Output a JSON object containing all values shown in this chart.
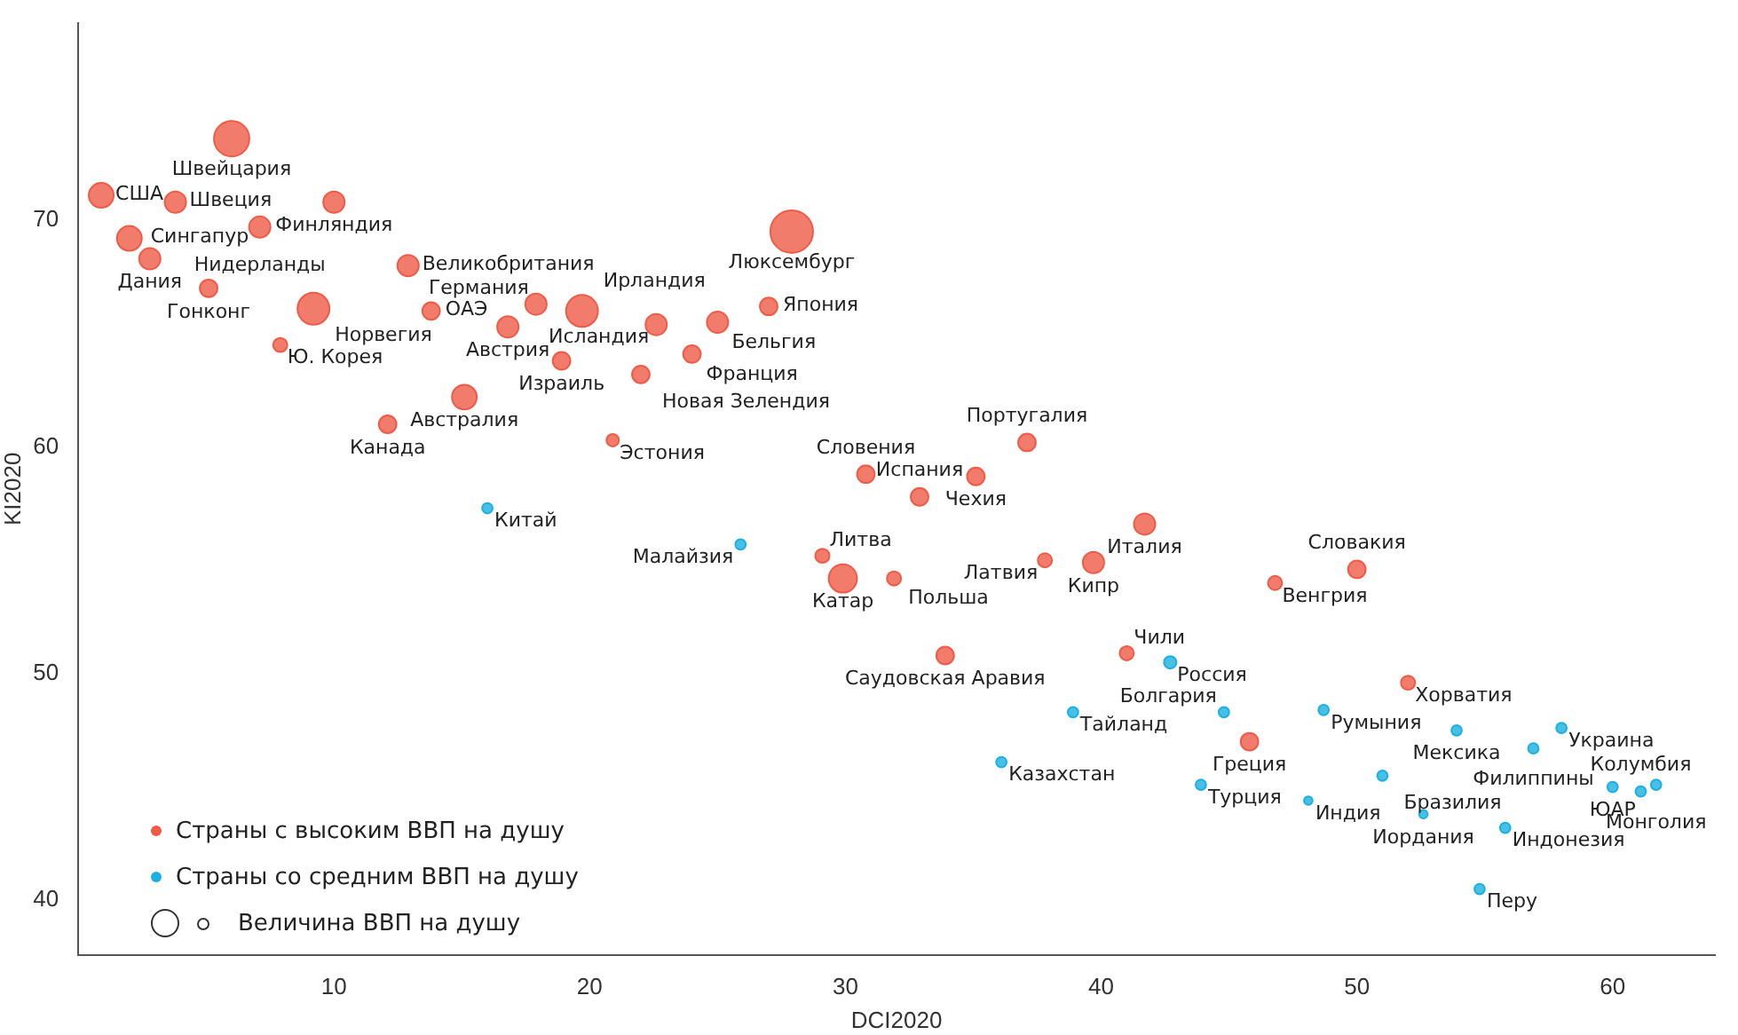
{
  "chart_data": {
    "type": "bubble",
    "xlabel": "DCI2020",
    "ylabel": "KI2020",
    "xlim": [
      0,
      64
    ],
    "ylim": [
      37.6,
      78.7
    ],
    "xticks": [
      10,
      20,
      30,
      40,
      50,
      60
    ],
    "yticks": [
      40,
      50,
      60,
      70
    ],
    "grid": false,
    "legend": "bottom left",
    "series": [
      {
        "name": "Страны с высоким ВВП  на душу",
        "color": "#ef5b47",
        "x": [
          6.0,
          0.9,
          3.8,
          10.0,
          2.0,
          7.1,
          2.8,
          27.9,
          12.9,
          5.1,
          9.2,
          13.8,
          17.9,
          16.8,
          19.7,
          22.6,
          25.0,
          27.0,
          24.0,
          18.9,
          22.0,
          7.9,
          15.1,
          12.1,
          20.9,
          30.8,
          35.1,
          32.9,
          37.1,
          41.7,
          37.8,
          39.7,
          29.1,
          29.9,
          31.9,
          33.9,
          41.0,
          46.8,
          50.0,
          52.0,
          45.8
        ],
        "values": [
          73.6,
          71.1,
          70.8,
          70.8,
          69.2,
          69.7,
          68.3,
          69.5,
          68.0,
          67.0,
          66.1,
          66.0,
          66.3,
          65.3,
          66.0,
          65.4,
          65.5,
          66.2,
          64.1,
          63.8,
          63.2,
          64.5,
          62.2,
          61.0,
          60.3,
          58.8,
          58.7,
          57.8,
          60.2,
          56.6,
          55.0,
          54.9,
          55.2,
          54.2,
          54.2,
          50.8,
          50.9,
          54.0,
          54.6,
          49.6,
          47.0
        ],
        "sizes": [
          0.69,
          0.34,
          0.25,
          0.25,
          0.34,
          0.25,
          0.25,
          1,
          0.25,
          0.17,
          0.56,
          0.17,
          0.25,
          0.25,
          0.56,
          0.25,
          0.25,
          0.17,
          0.17,
          0.17,
          0.17,
          0.11,
          0.34,
          0.17,
          0.085,
          0.17,
          0.17,
          0.17,
          0.17,
          0.25,
          0.11,
          0.25,
          0.11,
          0.44,
          0.11,
          0.17,
          0.11,
          0.11,
          0.17,
          0.11,
          0.17
        ]
      },
      {
        "name": "Страны со средним ВВП на душу",
        "color": "#1ab0e0",
        "x": [
          16.0,
          25.9,
          42.7,
          38.9,
          36.1,
          44.8,
          48.7,
          53.9,
          58.0,
          56.9,
          43.9,
          48.1,
          51.0,
          52.6,
          55.8,
          54.8,
          60.0,
          61.1,
          61.7
        ],
        "values": [
          57.3,
          55.7,
          50.5,
          48.3,
          46.1,
          48.3,
          48.4,
          47.5,
          47.6,
          46.7,
          45.1,
          44.4,
          45.5,
          43.8,
          43.2,
          40.5,
          45.0,
          44.8,
          45.1
        ],
        "sizes": [
          0.06,
          0.06,
          0.085,
          0.06,
          0.06,
          0.06,
          0.06,
          0.06,
          0.06,
          0.06,
          0.06,
          0.04,
          0.06,
          0.04,
          0.06,
          0.06,
          0.06,
          0.06,
          0.06
        ]
      }
    ],
    "annotations": [
      "Величина ВВП на душу",
      {
        "text": "Швейцария",
        "x": 6.0,
        "y": 73.6
      },
      {
        "text": "США",
        "x": 0.9,
        "y": 71.1
      },
      {
        "text": "Швеция",
        "x": 3.8,
        "y": 70.8
      },
      {
        "text": "Финляндия",
        "x": 10.0,
        "y": 70.8
      },
      {
        "text": "Сингапур",
        "x": 2.0,
        "y": 69.2
      },
      {
        "text": "Нидерланды",
        "x": 7.1,
        "y": 69.7
      },
      {
        "text": "Дания",
        "x": 2.8,
        "y": 68.3
      },
      {
        "text": "Люксембург",
        "x": 27.9,
        "y": 69.5
      },
      {
        "text": "Великобритания",
        "x": 12.9,
        "y": 68.0
      },
      {
        "text": "Гонконг",
        "x": 5.1,
        "y": 67.0
      },
      {
        "text": "Норвегия",
        "x": 9.2,
        "y": 66.1
      },
      {
        "text": "ОАЭ",
        "x": 13.8,
        "y": 66.0
      },
      {
        "text": "Германия",
        "x": 17.9,
        "y": 66.3
      },
      {
        "text": "Австрия",
        "x": 16.8,
        "y": 65.3
      },
      {
        "text": "Ирландия",
        "x": 19.7,
        "y": 66.0
      },
      {
        "text": "Исландия",
        "x": 22.6,
        "y": 65.4
      },
      {
        "text": "Бельгия",
        "x": 25.0,
        "y": 65.5
      },
      {
        "text": "Япония",
        "x": 27.0,
        "y": 66.2
      },
      {
        "text": "Франция",
        "x": 24.0,
        "y": 64.1
      },
      {
        "text": "Израиль",
        "x": 18.9,
        "y": 63.8
      },
      {
        "text": "Новая Зелендия",
        "x": 22.0,
        "y": 63.2
      },
      {
        "text": "Ю. Корея",
        "x": 7.9,
        "y": 64.5
      },
      {
        "text": "Австралия",
        "x": 15.1,
        "y": 62.2
      },
      {
        "text": "Канада",
        "x": 12.1,
        "y": 61.0
      },
      {
        "text": "Эстония",
        "x": 20.9,
        "y": 60.3
      },
      {
        "text": "Словения",
        "x": 30.8,
        "y": 58.8
      },
      {
        "text": "Чехия",
        "x": 35.1,
        "y": 58.7
      },
      {
        "text": "Испания",
        "x": 32.9,
        "y": 57.8
      },
      {
        "text": "Португалия",
        "x": 37.1,
        "y": 60.2
      },
      {
        "text": "Италия",
        "x": 41.7,
        "y": 56.6
      },
      {
        "text": "Латвия",
        "x": 37.8,
        "y": 55.0
      },
      {
        "text": "Кипр",
        "x": 39.7,
        "y": 54.9
      },
      {
        "text": "Литва",
        "x": 29.1,
        "y": 55.2
      },
      {
        "text": "Катар",
        "x": 29.9,
        "y": 54.2
      },
      {
        "text": "Польша",
        "x": 31.9,
        "y": 54.2
      },
      {
        "text": "Саудовская Аравия",
        "x": 33.9,
        "y": 50.8
      },
      {
        "text": "Чили",
        "x": 41.0,
        "y": 50.9
      },
      {
        "text": "Венгрия",
        "x": 46.8,
        "y": 54.0
      },
      {
        "text": "Словакия",
        "x": 50.0,
        "y": 54.6
      },
      {
        "text": "Хорватия",
        "x": 52.0,
        "y": 49.6
      },
      {
        "text": "Греция",
        "x": 45.8,
        "y": 47.0
      },
      {
        "text": "Китай",
        "x": 16.0,
        "y": 57.3
      },
      {
        "text": "Малайзия",
        "x": 25.9,
        "y": 55.7
      },
      {
        "text": "Россия",
        "x": 42.7,
        "y": 50.5
      },
      {
        "text": "Тайланд",
        "x": 38.9,
        "y": 48.3
      },
      {
        "text": "Казахстан",
        "x": 36.1,
        "y": 46.1
      },
      {
        "text": "Болгария",
        "x": 44.8,
        "y": 48.3
      },
      {
        "text": "Румыния",
        "x": 48.7,
        "y": 48.4
      },
      {
        "text": "Мексика",
        "x": 53.9,
        "y": 47.5
      },
      {
        "text": "Украина",
        "x": 58.0,
        "y": 47.6
      },
      {
        "text": "Филиппины",
        "x": 56.9,
        "y": 46.7
      },
      {
        "text": "Турция",
        "x": 43.9,
        "y": 45.1
      },
      {
        "text": "Индия",
        "x": 48.1,
        "y": 44.4
      },
      {
        "text": "Бразилия",
        "x": 51.0,
        "y": 45.5
      },
      {
        "text": "Иордания",
        "x": 52.6,
        "y": 43.8
      },
      {
        "text": "Индонезия",
        "x": 55.8,
        "y": 43.2
      },
      {
        "text": "Перу",
        "x": 54.8,
        "y": 40.5
      },
      {
        "text": "ЮАР",
        "x": 60.0,
        "y": 45.0
      },
      {
        "text": "Колумбия",
        "x": 61.1,
        "y": 44.8
      },
      {
        "text": "Монголия",
        "x": 61.7,
        "y": 45.1
      }
    ]
  }
}
